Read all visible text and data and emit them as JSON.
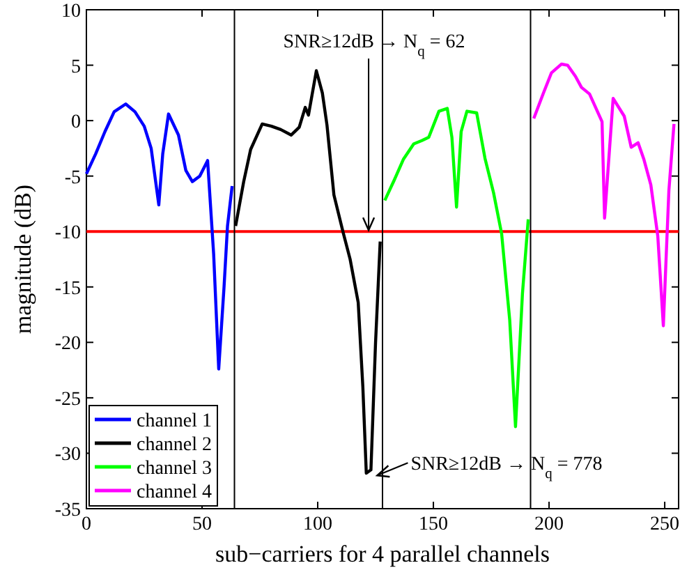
{
  "chart_data": {
    "type": "line",
    "xlabel": "sub−carriers for 4 parallel channels",
    "ylabel": "magnitude (dB)",
    "xlim": [
      0,
      256
    ],
    "ylim": [
      -35,
      10
    ],
    "xticks": [
      0,
      50,
      100,
      150,
      200,
      250
    ],
    "yticks": [
      -35,
      -30,
      -25,
      -20,
      -15,
      -10,
      -5,
      0,
      5,
      10
    ],
    "grid": false,
    "legend": "bottom left",
    "line_style": "solid",
    "series": [
      {
        "name": "channel 1",
        "color": "#0000ff",
        "x": [
          0,
          4,
          8,
          12,
          17,
          21,
          25,
          28,
          31.3,
          33,
          35.5,
          39.8,
          43,
          45.8,
          49,
          52.4,
          55,
          57.2,
          59.5,
          61,
          63
        ],
        "values": [
          -4.8,
          -3,
          -1,
          0.8,
          1.5,
          0.8,
          -0.5,
          -2.5,
          -7.6,
          -3,
          0.6,
          -1.3,
          -4.5,
          -5.5,
          -5,
          -3.6,
          -12,
          -22.4,
          -15,
          -9.5,
          -5.9
        ]
      },
      {
        "name": "channel 2",
        "color": "#000000",
        "x": [
          64.5,
          68,
          71,
          76,
          80,
          84,
          88.5,
          92,
          94.6,
          96,
          99.4,
          102,
          104,
          107,
          111,
          114,
          117.5,
          119.5,
          121,
          123,
          125,
          127
        ],
        "values": [
          -9.5,
          -5.5,
          -2.6,
          -0.3,
          -0.5,
          -0.8,
          -1.3,
          -0.6,
          1.2,
          0.5,
          4.5,
          2.5,
          -0.4,
          -6.7,
          -10.1,
          -12.5,
          -16.4,
          -24,
          -31.8,
          -31.5,
          -20,
          -10.9
        ]
      },
      {
        "name": "channel 3",
        "color": "#00ff00",
        "x": [
          129,
          133,
          137,
          141.5,
          145,
          148,
          152.4,
          156,
          158,
          160,
          162,
          164.5,
          168.7,
          172.3,
          176,
          179.5,
          183,
          185.5,
          188.5,
          191
        ],
        "values": [
          -7.2,
          -5.4,
          -3.5,
          -2.1,
          -1.8,
          -1.5,
          0.85,
          1.1,
          -1.5,
          -7.8,
          -1,
          0.85,
          0.7,
          -3.4,
          -6.5,
          -10.2,
          -18,
          -27.6,
          -15.6,
          -8.9
        ]
      },
      {
        "name": "channel 4",
        "color": "#ff00ff",
        "x": [
          193.4,
          197.6,
          201,
          205.4,
          208,
          211.4,
          214,
          217.5,
          222.9,
          224,
          227.7,
          232.5,
          235.5,
          238.5,
          241,
          244,
          247,
          249.4,
          251.8,
          254
        ],
        "values": [
          0.2,
          2.5,
          4.3,
          5.1,
          5,
          4,
          3,
          2.4,
          -0.1,
          -8.8,
          2,
          0.4,
          -2.4,
          -2,
          -3.5,
          -5.8,
          -10.4,
          -18.5,
          -6.3,
          -0.3
        ]
      }
    ],
    "ref_lines": [
      {
        "axis": "y",
        "value": -10,
        "color": "#ff0000"
      },
      {
        "axis": "x",
        "value": 64,
        "color": "#000000"
      },
      {
        "axis": "x",
        "value": 128,
        "color": "#000000"
      },
      {
        "axis": "x",
        "value": 192,
        "color": "#000000"
      }
    ],
    "annotations": [
      {
        "text": "SNR≥12dB → N$_{q}$ = 62",
        "x": 122,
        "y": -10
      },
      {
        "text": "SNR≥12dB → N$_{q}$ = 778",
        "x": 124.5,
        "y": -32
      }
    ]
  }
}
